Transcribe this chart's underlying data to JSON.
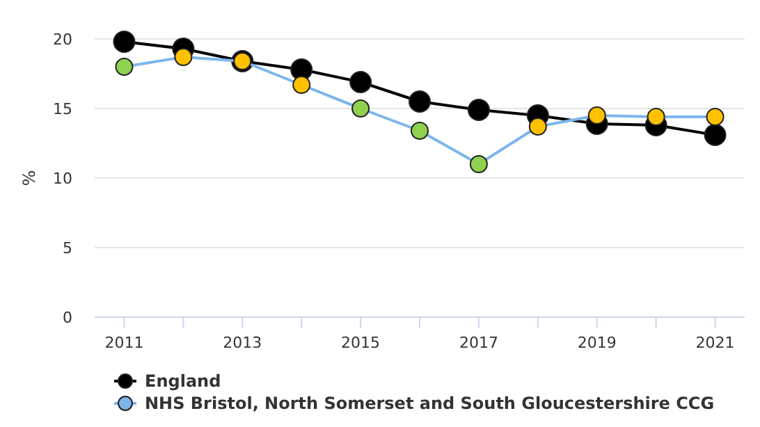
{
  "chart_data": {
    "type": "line",
    "ylabel": "%",
    "x": [
      2011,
      2012,
      2013,
      2014,
      2015,
      2016,
      2017,
      2018,
      2019,
      2020,
      2021
    ],
    "xlim": [
      2010.5,
      2021.5
    ],
    "xticks": [
      2011,
      {
        "value": 2012,
        "label": null
      },
      2013,
      {
        "value": 2014,
        "label": null
      },
      2015,
      {
        "value": 2016,
        "label": null
      },
      2017,
      {
        "value": 2018,
        "label": null
      },
      2019,
      {
        "value": 2020,
        "label": null
      },
      2021
    ],
    "ylim": [
      0,
      20
    ],
    "yticks": [
      0,
      5,
      10,
      15,
      20
    ],
    "grid": "y",
    "legend": "bottom left",
    "marker": "circle",
    "line_style": "solid",
    "series": [
      {
        "name": "England",
        "color": "#000000",
        "values": [
          19.8,
          19.3,
          18.4,
          17.8,
          16.9,
          15.5,
          14.9,
          14.5,
          13.9,
          13.8,
          13.1
        ]
      },
      {
        "name": "NHS Bristol, North Somerset and South Gloucestershire CCG",
        "color": "#7cb5ec",
        "colors": [
          "#8fd14f",
          "#ffc000",
          "#ffc000",
          "#ffc000",
          "#8fd14f",
          "#8fd14f",
          "#8fd14f",
          "#ffc000",
          "#ffc000",
          "#ffc000",
          "#ffc000"
        ],
        "values": [
          18.0,
          18.7,
          18.4,
          16.7,
          15.0,
          13.4,
          11.0,
          13.7,
          14.5,
          14.4,
          14.4
        ]
      }
    ]
  }
}
